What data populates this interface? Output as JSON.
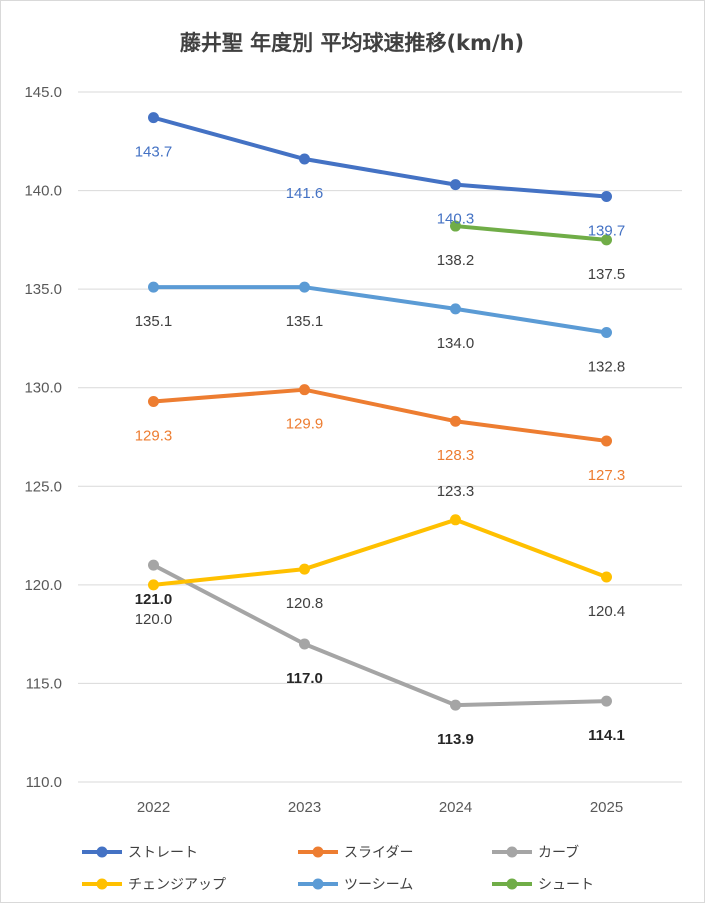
{
  "chart_data": {
    "type": "line",
    "title": "藤井聖 年度別 平均球速推移(km/h)",
    "categories": [
      "2022",
      "2023",
      "2024",
      "2025"
    ],
    "ylim": [
      110,
      145
    ],
    "yticks": [
      "110.0",
      "115.0",
      "120.0",
      "125.0",
      "130.0",
      "135.0",
      "140.0",
      "145.0"
    ],
    "grid": true,
    "legend_position": "bottom",
    "series": [
      {
        "name": "ストレート",
        "color": "#4472C4",
        "values": [
          143.7,
          141.6,
          140.3,
          139.7
        ],
        "labels": [
          "143.7",
          "141.6",
          "140.3",
          "139.7"
        ],
        "label_color": "#4472C4",
        "label_bold": false
      },
      {
        "name": "スライダー",
        "color": "#ED7D31",
        "values": [
          129.3,
          129.9,
          128.3,
          127.3
        ],
        "labels": [
          "129.3",
          "129.9",
          "128.3",
          "127.3"
        ],
        "label_color": "#ED7D31",
        "label_bold": false
      },
      {
        "name": "カーブ",
        "color": "#A5A5A5",
        "values": [
          121.0,
          117.0,
          113.9,
          114.1
        ],
        "labels": [
          "121.0",
          "117.0",
          "113.9",
          "114.1"
        ],
        "label_color": "#262626",
        "label_bold": true
      },
      {
        "name": "チェンジアップ",
        "color": "#FFC000",
        "values": [
          120.0,
          120.8,
          123.3,
          120.4
        ],
        "labels": [
          "120.0",
          "120.8",
          "123.3",
          "120.4"
        ],
        "label_color": "#404040",
        "label_bold": false
      },
      {
        "name": "ツーシーム",
        "color": "#5B9BD5",
        "values": [
          135.1,
          135.1,
          134.0,
          132.8
        ],
        "labels": [
          "135.1",
          "135.1",
          "134.0",
          "132.8"
        ],
        "label_color": "#404040",
        "label_bold": false
      },
      {
        "name": "シュート",
        "color": "#70AD47",
        "values": [
          null,
          null,
          138.2,
          137.5
        ],
        "labels": [
          "",
          "",
          "138.2",
          "137.5"
        ],
        "label_color": "#404040",
        "label_bold": false
      }
    ]
  }
}
